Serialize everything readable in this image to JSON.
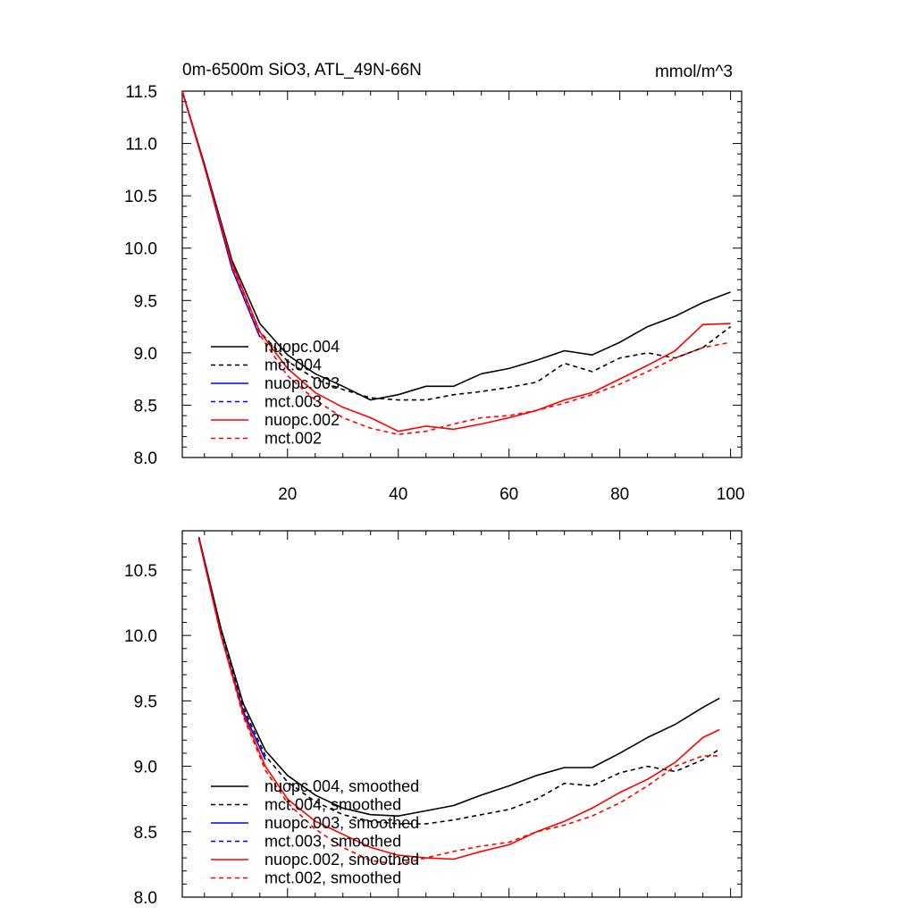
{
  "chart_data": [
    {
      "type": "line",
      "title": "0m-6500m SiO3, ATL_49N-66N",
      "units": "mmol/m^3",
      "xlim": [
        1,
        102
      ],
      "ylim": [
        8.0,
        11.5
      ],
      "xticks": [
        20,
        40,
        60,
        80,
        100
      ],
      "yticks": [
        8.0,
        8.5,
        9.0,
        9.5,
        10.0,
        10.5,
        11.0,
        11.5
      ],
      "ytick_labels": [
        "8.0",
        "8.5",
        "9.0",
        "9.5",
        "10.0",
        "10.5",
        "11.0",
        "11.5"
      ],
      "legend_position": "lower-left",
      "series": [
        {
          "name": "nuopc.004",
          "color": "#000000",
          "dash": "solid",
          "x": [
            1,
            5,
            10,
            15,
            20,
            25,
            30,
            35,
            40,
            45,
            50,
            55,
            60,
            65,
            70,
            75,
            80,
            85,
            90,
            95,
            100
          ],
          "y": [
            11.5,
            10.8,
            9.88,
            9.28,
            8.98,
            8.8,
            8.68,
            8.55,
            8.6,
            8.68,
            8.68,
            8.8,
            8.85,
            8.93,
            9.02,
            8.98,
            9.1,
            9.25,
            9.35,
            9.48,
            9.58
          ]
        },
        {
          "name": "mct.004",
          "color": "#000000",
          "dash": "dashed",
          "x": [
            1,
            5,
            10,
            15,
            20,
            25,
            30,
            35,
            40,
            45,
            50,
            55,
            60,
            65,
            70,
            75,
            80,
            85,
            90,
            95,
            100
          ],
          "y": [
            11.5,
            10.8,
            9.85,
            9.2,
            8.92,
            8.75,
            8.65,
            8.57,
            8.55,
            8.55,
            8.6,
            8.63,
            8.67,
            8.72,
            8.9,
            8.82,
            8.95,
            9.0,
            8.95,
            9.05,
            9.25
          ]
        },
        {
          "name": "nuopc.003",
          "color": "#0000ff",
          "dash": "solid",
          "x": [
            1,
            5,
            10,
            15
          ],
          "y": [
            11.5,
            10.78,
            9.8,
            9.15
          ]
        },
        {
          "name": "mct.003",
          "color": "#0000ff",
          "dash": "dashed",
          "x": [
            1,
            5,
            10,
            15
          ],
          "y": [
            11.5,
            10.78,
            9.8,
            9.15
          ]
        },
        {
          "name": "nuopc.002",
          "color": "#ff0000",
          "dash": "solid",
          "x": [
            1,
            5,
            10,
            15,
            20,
            25,
            30,
            35,
            40,
            45,
            50,
            55,
            60,
            65,
            70,
            75,
            80,
            85,
            90,
            95,
            100
          ],
          "y": [
            11.5,
            10.78,
            9.85,
            9.2,
            8.85,
            8.62,
            8.48,
            8.38,
            8.25,
            8.3,
            8.27,
            8.32,
            8.38,
            8.45,
            8.55,
            8.62,
            8.75,
            8.88,
            9.02,
            9.27,
            9.28
          ]
        },
        {
          "name": "mct.002",
          "color": "#ff0000",
          "dash": "dashed",
          "x": [
            1,
            5,
            10,
            15,
            20,
            25,
            30,
            35,
            40,
            45,
            50,
            55,
            60,
            65,
            70,
            75,
            80,
            85,
            90,
            95,
            100
          ],
          "y": [
            11.5,
            10.78,
            9.82,
            9.17,
            8.78,
            8.55,
            8.38,
            8.28,
            8.22,
            8.25,
            8.32,
            8.38,
            8.4,
            8.45,
            8.52,
            8.6,
            8.7,
            8.82,
            8.95,
            9.05,
            9.1
          ]
        }
      ]
    },
    {
      "type": "line",
      "title": "",
      "xlim": [
        1,
        102
      ],
      "ylim": [
        8.0,
        10.8
      ],
      "xticks": [
        20,
        40,
        60,
        80,
        100
      ],
      "xtick_labels": [
        "",
        "",
        "",
        "",
        ""
      ],
      "yticks": [
        8.0,
        8.5,
        9.0,
        9.5,
        10.0,
        10.5
      ],
      "ytick_labels": [
        "8.0",
        "8.5",
        "9.0",
        "9.5",
        "10.0",
        "10.5"
      ],
      "legend_position": "lower-left",
      "series": [
        {
          "name": "nuopc.004, smoothed",
          "color": "#000000",
          "dash": "solid",
          "x": [
            4,
            8,
            12,
            16,
            20,
            25,
            30,
            35,
            40,
            45,
            50,
            55,
            60,
            65,
            70,
            75,
            80,
            85,
            90,
            95,
            98
          ],
          "y": [
            10.75,
            10.05,
            9.48,
            9.12,
            8.93,
            8.78,
            8.68,
            8.63,
            8.62,
            8.66,
            8.7,
            8.78,
            8.85,
            8.93,
            8.99,
            8.99,
            9.1,
            9.22,
            9.32,
            9.45,
            9.52
          ]
        },
        {
          "name": "mct.004, smoothed",
          "color": "#000000",
          "dash": "dashed",
          "x": [
            4,
            8,
            12,
            16,
            20,
            25,
            30,
            35,
            40,
            45,
            50,
            55,
            60,
            65,
            70,
            75,
            80,
            85,
            90,
            95,
            98
          ],
          "y": [
            10.75,
            10.02,
            9.45,
            9.08,
            8.88,
            8.73,
            8.63,
            8.58,
            8.56,
            8.56,
            8.59,
            8.63,
            8.67,
            8.75,
            8.87,
            8.85,
            8.95,
            9.0,
            8.96,
            9.05,
            9.13
          ]
        },
        {
          "name": "nuopc.003, smoothed",
          "color": "#0000ff",
          "dash": "solid",
          "x": [
            4,
            8,
            12,
            16
          ],
          "y": [
            10.74,
            10.0,
            9.42,
            9.05
          ]
        },
        {
          "name": "mct.003, smoothed",
          "color": "#0000ff",
          "dash": "dashed",
          "x": [
            4,
            8,
            12,
            16
          ],
          "y": [
            10.74,
            10.0,
            9.42,
            9.05
          ]
        },
        {
          "name": "nuopc.002, smoothed",
          "color": "#ff0000",
          "dash": "solid",
          "x": [
            4,
            8,
            12,
            16,
            20,
            25,
            30,
            35,
            40,
            45,
            50,
            55,
            60,
            65,
            70,
            75,
            80,
            85,
            90,
            95,
            98
          ],
          "y": [
            10.74,
            10.0,
            9.4,
            9.0,
            8.75,
            8.58,
            8.48,
            8.38,
            8.32,
            8.3,
            8.29,
            8.35,
            8.4,
            8.5,
            8.58,
            8.68,
            8.8,
            8.9,
            9.03,
            9.22,
            9.28
          ]
        },
        {
          "name": "mct.002, smoothed",
          "color": "#ff0000",
          "dash": "dashed",
          "x": [
            4,
            8,
            12,
            16,
            20,
            25,
            30,
            35,
            40,
            45,
            50,
            55,
            60,
            65,
            70,
            75,
            80,
            85,
            90,
            95,
            98
          ],
          "y": [
            10.74,
            10.0,
            9.38,
            8.97,
            8.72,
            8.52,
            8.38,
            8.28,
            8.25,
            8.3,
            8.35,
            8.39,
            8.42,
            8.5,
            8.55,
            8.62,
            8.72,
            8.85,
            9.0,
            9.08,
            9.08
          ]
        }
      ]
    }
  ]
}
